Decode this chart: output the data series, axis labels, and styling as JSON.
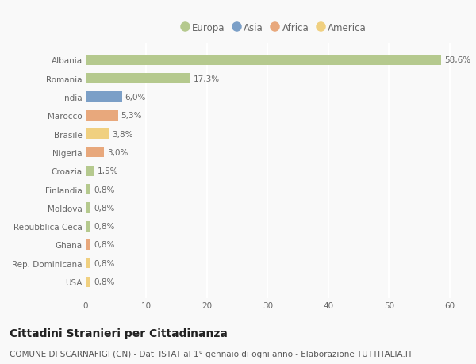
{
  "categories": [
    "Albania",
    "Romania",
    "India",
    "Marocco",
    "Brasile",
    "Nigeria",
    "Croazia",
    "Finlandia",
    "Moldova",
    "Repubblica Ceca",
    "Ghana",
    "Rep. Dominicana",
    "USA"
  ],
  "values": [
    58.6,
    17.3,
    6.0,
    5.3,
    3.8,
    3.0,
    1.5,
    0.8,
    0.8,
    0.8,
    0.8,
    0.8,
    0.8
  ],
  "labels": [
    "58,6%",
    "17,3%",
    "6,0%",
    "5,3%",
    "3,8%",
    "3,0%",
    "1,5%",
    "0,8%",
    "0,8%",
    "0,8%",
    "0,8%",
    "0,8%",
    "0,8%"
  ],
  "colors": [
    "#b5c98e",
    "#b5c98e",
    "#7b9fc7",
    "#e8a87c",
    "#f0d080",
    "#e8a87c",
    "#b5c98e",
    "#b5c98e",
    "#b5c98e",
    "#b5c98e",
    "#e8a87c",
    "#f0d080",
    "#f0d080"
  ],
  "legend_labels": [
    "Europa",
    "Asia",
    "Africa",
    "America"
  ],
  "legend_colors": [
    "#b5c98e",
    "#7b9fc7",
    "#e8a87c",
    "#f0d080"
  ],
  "title": "Cittadini Stranieri per Cittadinanza",
  "subtitle": "COMUNE DI SCARNAFIGI (CN) - Dati ISTAT al 1° gennaio di ogni anno - Elaborazione TUTTITALIA.IT",
  "xlim": [
    0,
    62
  ],
  "xticks": [
    0,
    10,
    20,
    30,
    40,
    50,
    60
  ],
  "background_color": "#f9f9f9",
  "grid_color": "#ffffff",
  "title_fontsize": 10,
  "subtitle_fontsize": 7.5,
  "label_fontsize": 7.5,
  "tick_fontsize": 7.5,
  "legend_fontsize": 8.5
}
